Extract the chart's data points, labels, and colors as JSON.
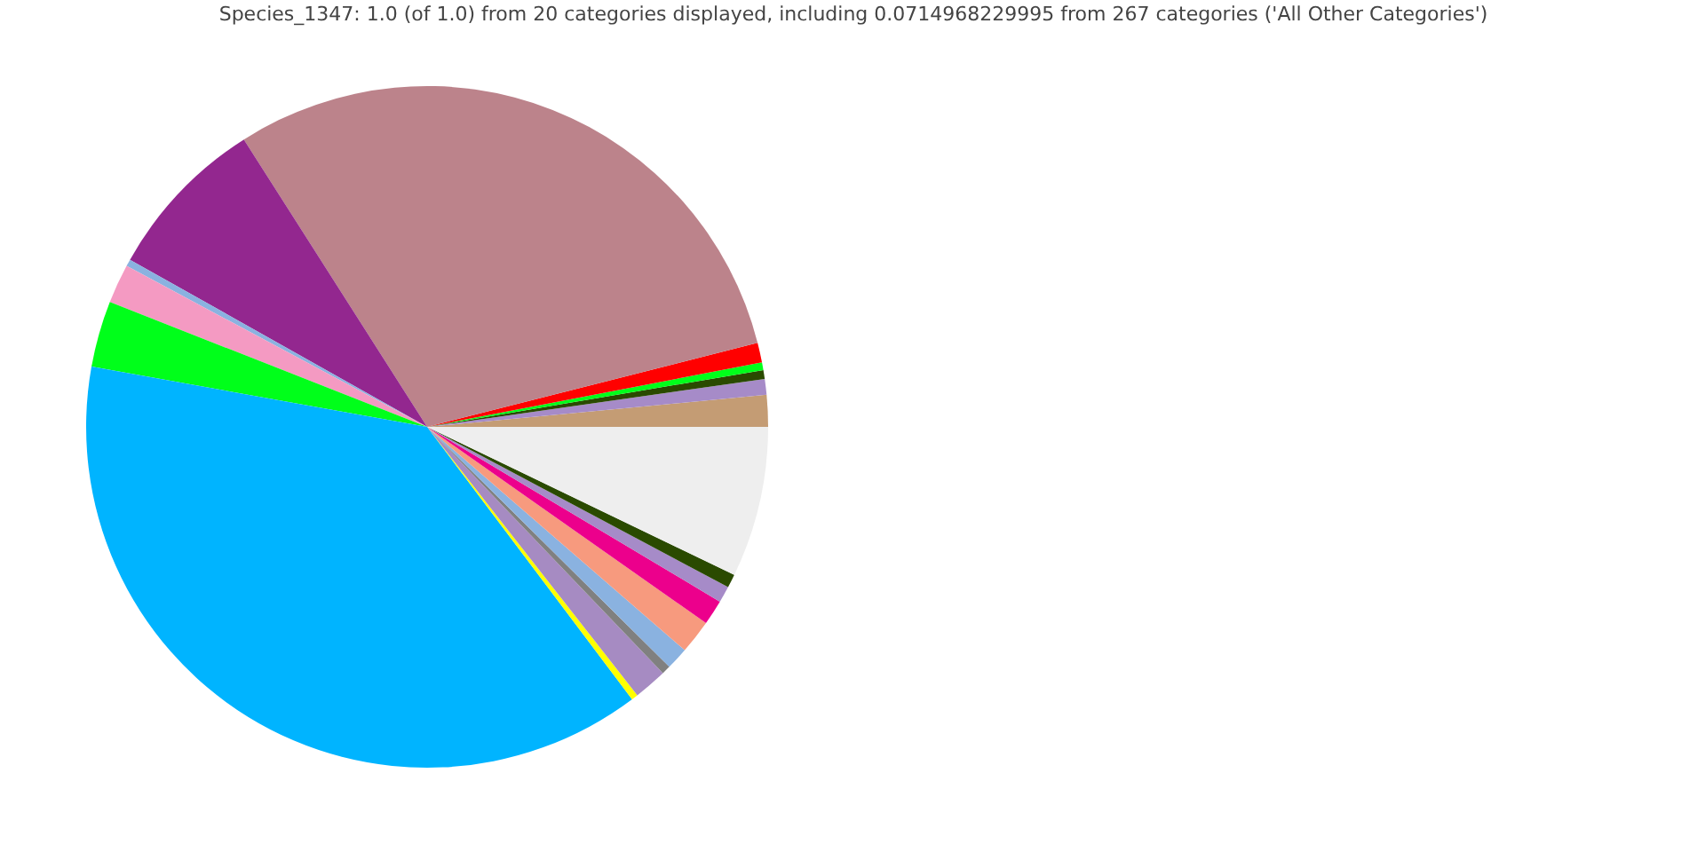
{
  "chart_data": {
    "type": "pie",
    "title": "Species_1347: 1.0 (of 1.0) from 20 categories displayed, including 0.0714968229995 from 267 categories ('All Other Categories')",
    "categories": [
      null,
      null,
      null,
      null,
      null,
      null,
      null,
      null,
      null,
      null,
      null,
      null,
      null,
      null,
      null,
      null,
      null,
      null,
      null,
      null
    ],
    "values": [
      1.5,
      0.75,
      0.42,
      0.36,
      0.94,
      30.06,
      7.81,
      0.33,
      1.86,
      3.14,
      38.09,
      0.31,
      1.58,
      0.42,
      1.06,
      1.61,
      1.19,
      0.78,
      0.64,
      7.15
    ],
    "colors": [
      "#c49c74",
      "#a68bc8",
      "#2a4a00",
      "#00ff1a",
      "#ff0000",
      "#bc838b",
      "#93278f",
      "#8ab2e0",
      "#f49ac2",
      "#00ff1a",
      "#00b4ff",
      "#ffff00",
      "#a68bc2",
      "#808080",
      "#8ab2e0",
      "#f79a7e",
      "#ec008c",
      "#a68bc8",
      "#2a4a00",
      "#eeeeee"
    ]
  }
}
